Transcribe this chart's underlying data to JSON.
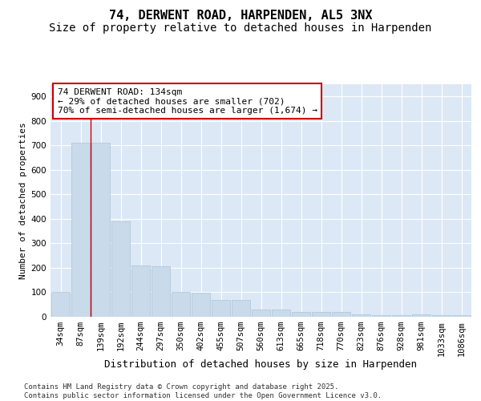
{
  "title": "74, DERWENT ROAD, HARPENDEN, AL5 3NX",
  "subtitle": "Size of property relative to detached houses in Harpenden",
  "xlabel": "Distribution of detached houses by size in Harpenden",
  "ylabel": "Number of detached properties",
  "categories": [
    "34sqm",
    "87sqm",
    "139sqm",
    "192sqm",
    "244sqm",
    "297sqm",
    "350sqm",
    "402sqm",
    "455sqm",
    "507sqm",
    "560sqm",
    "613sqm",
    "665sqm",
    "718sqm",
    "770sqm",
    "823sqm",
    "876sqm",
    "928sqm",
    "981sqm",
    "1033sqm",
    "1086sqm"
  ],
  "values": [
    100,
    710,
    710,
    390,
    210,
    205,
    100,
    97,
    70,
    68,
    30,
    30,
    20,
    20,
    20,
    10,
    8,
    8,
    10,
    5,
    5
  ],
  "bar_color": "#c9daea",
  "bar_edge_color": "#aac4d8",
  "background_color": "#dce8f5",
  "grid_color": "#ffffff",
  "property_line_x": 1.5,
  "annotation_text": "74 DERWENT ROAD: 134sqm\n← 29% of detached houses are smaller (702)\n70% of semi-detached houses are larger (1,674) →",
  "annotation_box_facecolor": "#ffffff",
  "annotation_box_edgecolor": "#cc0000",
  "annotation_text_color": "#000000",
  "vline_color": "#cc0000",
  "ylim": [
    0,
    950
  ],
  "yticks": [
    0,
    100,
    200,
    300,
    400,
    500,
    600,
    700,
    800,
    900
  ],
  "footer_text": "Contains HM Land Registry data © Crown copyright and database right 2025.\nContains public sector information licensed under the Open Government Licence v3.0.",
  "title_fontsize": 11,
  "subtitle_fontsize": 10,
  "xlabel_fontsize": 9,
  "ylabel_fontsize": 8,
  "tick_fontsize": 7.5,
  "annotation_fontsize": 8,
  "footer_fontsize": 6.5
}
